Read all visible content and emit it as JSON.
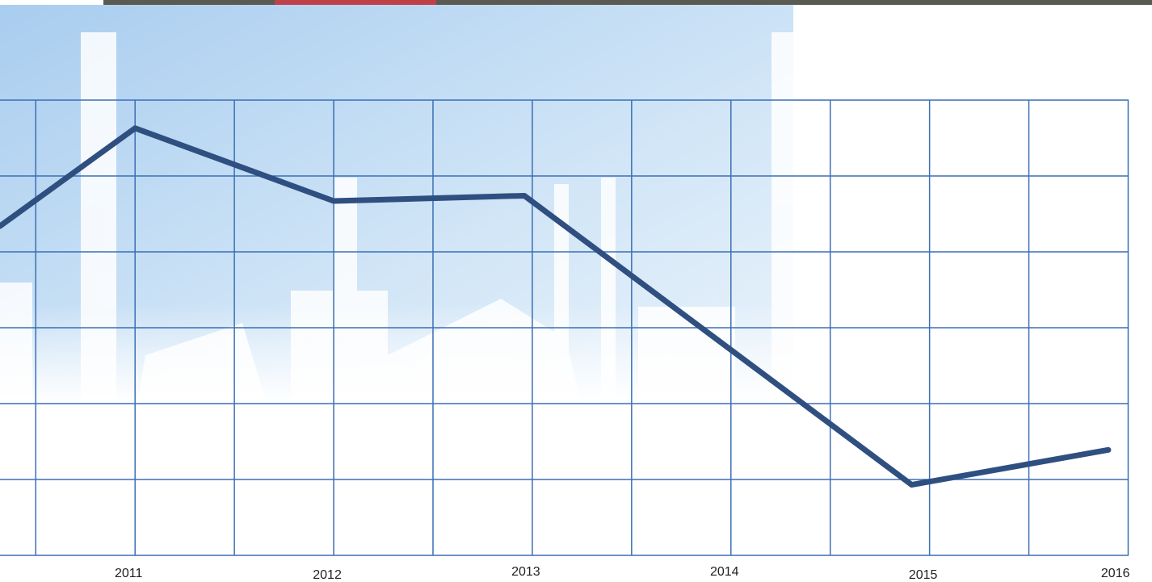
{
  "chart_data": {
    "type": "line",
    "series": [
      {
        "color": "#2f4f80",
        "x": [
          2010.32,
          2011,
          2012,
          2012.96,
          2014.91,
          2015.9
        ],
        "values": [
          4.34,
          5.63,
          4.67,
          4.74,
          0.93,
          1.39
        ]
      }
    ],
    "xlim": [
      2010.32,
      2016.12
    ],
    "xticks": [
      2011,
      2012,
      2013,
      2014,
      2015,
      2016
    ],
    "minor_xticks": [
      2010.5,
      2011.5,
      2012.5,
      2013.5,
      2014.5,
      2015.5
    ],
    "ylim": [
      0,
      6
    ],
    "yticks": [
      0,
      1,
      2,
      3,
      4,
      5,
      6
    ],
    "grid": true,
    "grid_color": "#3a6fb5"
  }
}
